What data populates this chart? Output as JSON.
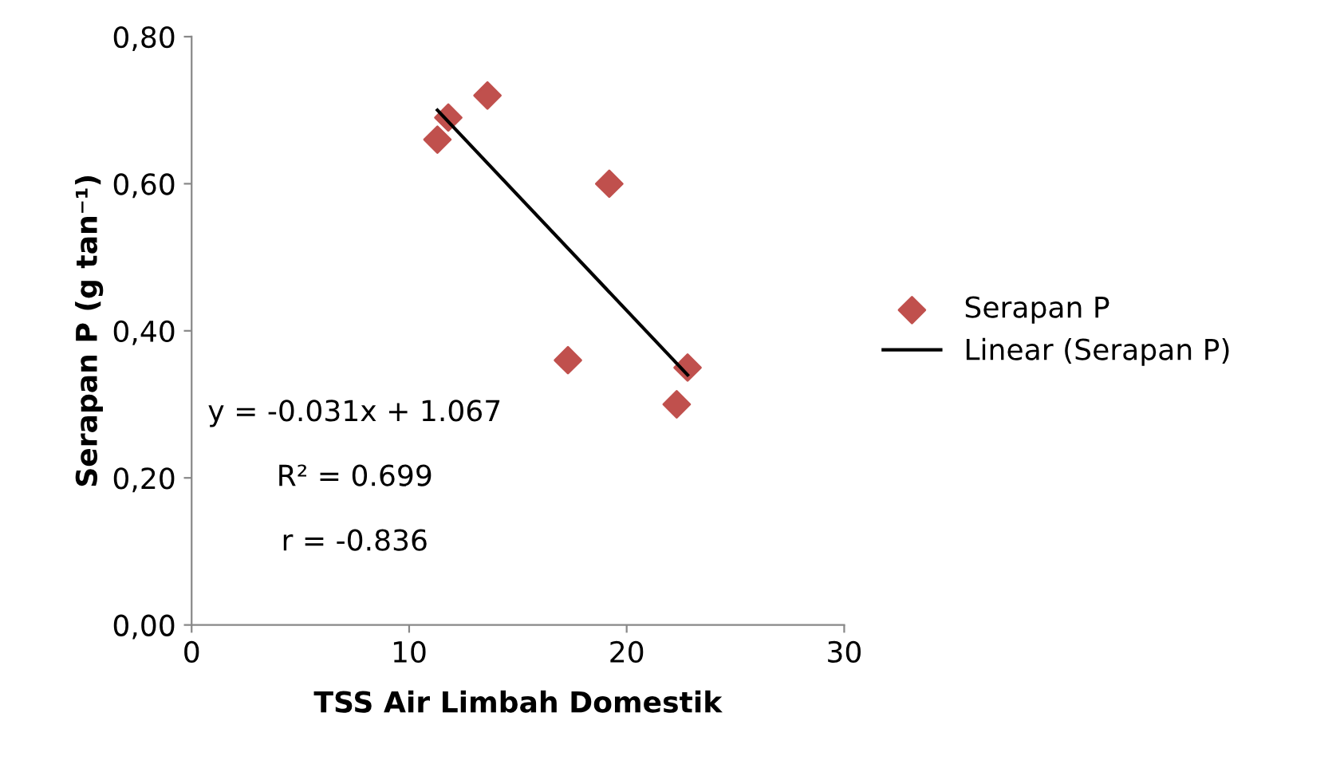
{
  "chart_data": {
    "type": "scatter",
    "xlabel": "TSS Air Limbah Domestik",
    "ylabel": "Serapan P (g tan⁻¹)",
    "series": [
      {
        "name": "Serapan P",
        "marker": "diamond",
        "color": "#c0504d",
        "x": [
          11.3,
          11.8,
          13.6,
          19.2,
          17.3,
          22.3,
          22.8
        ],
        "values": [
          0.66,
          0.69,
          0.72,
          0.6,
          0.36,
          0.3,
          0.35
        ]
      },
      {
        "name": "Linear (Serapan P)",
        "type": "line",
        "marker": "none",
        "line_style": "solid",
        "color": "#000000",
        "x": [
          11.3,
          22.8
        ],
        "values": [
          0.7,
          0.34
        ]
      }
    ],
    "xlim": [
      0,
      30
    ],
    "xticks": [
      0,
      10,
      20,
      30
    ],
    "ylim": [
      0,
      0.8
    ],
    "yticks": [
      {
        "value": 0,
        "label": "0,00"
      },
      {
        "value": 0.2,
        "label": "0,20"
      },
      {
        "value": 0.4,
        "label": "0,40"
      },
      {
        "value": 0.6,
        "label": "0,60"
      },
      {
        "value": 0.8,
        "label": "0,80"
      }
    ],
    "grid": false,
    "legend": "right",
    "annotations": [
      "y = -0.031x + 1.067",
      "R² = 0.699",
      "r = -0.836"
    ]
  }
}
